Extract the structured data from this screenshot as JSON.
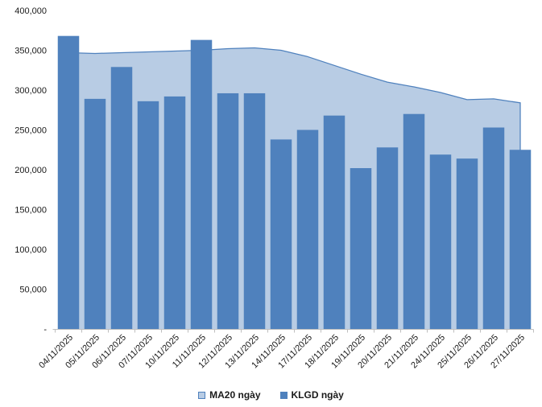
{
  "chart_data": {
    "type": "bar",
    "description": "Daily trading volume bars (KLGD) with 20-day moving average area (MA20)",
    "categories": [
      "04/11/2025",
      "05/11/2025",
      "06/11/2025",
      "07/11/2025",
      "10/11/2025",
      "11/11/2025",
      "12/11/2025",
      "13/11/2025",
      "14/11/2025",
      "17/11/2025",
      "18/11/2025",
      "19/11/2025",
      "20/11/2025",
      "21/11/2025",
      "24/11/2025",
      "25/11/2025",
      "26/11/2025",
      "27/11/2025"
    ],
    "series": [
      {
        "name": "MA20 ngày",
        "kind": "area",
        "color": "#B8CCE4",
        "line_color": "#4F81BD",
        "values": [
          347000,
          346000,
          347000,
          348000,
          349000,
          350000,
          352000,
          353000,
          350000,
          342000,
          331000,
          320000,
          310000,
          304000,
          297000,
          288000,
          289000,
          284000
        ]
      },
      {
        "name": "KLGD ngày",
        "kind": "bar",
        "color": "#4F81BD",
        "values": [
          368000,
          289000,
          329000,
          286000,
          292000,
          363000,
          296000,
          296000,
          238000,
          250000,
          268000,
          202000,
          228000,
          270000,
          219000,
          214000,
          253000,
          225000
        ]
      }
    ],
    "title": "",
    "xlabel": "",
    "ylabel": "",
    "ylim": [
      0,
      400000
    ],
    "ytick_step": 50000,
    "ytick_labels": [
      "-",
      "50,000",
      "100,000",
      "150,000",
      "200,000",
      "250,000",
      "300,000",
      "350,000",
      "400,000"
    ],
    "grid": false,
    "legend_position": "bottom",
    "axis_color": "#BFBFBF",
    "text_color": "#1a1a1a",
    "background_color": "#ffffff"
  }
}
